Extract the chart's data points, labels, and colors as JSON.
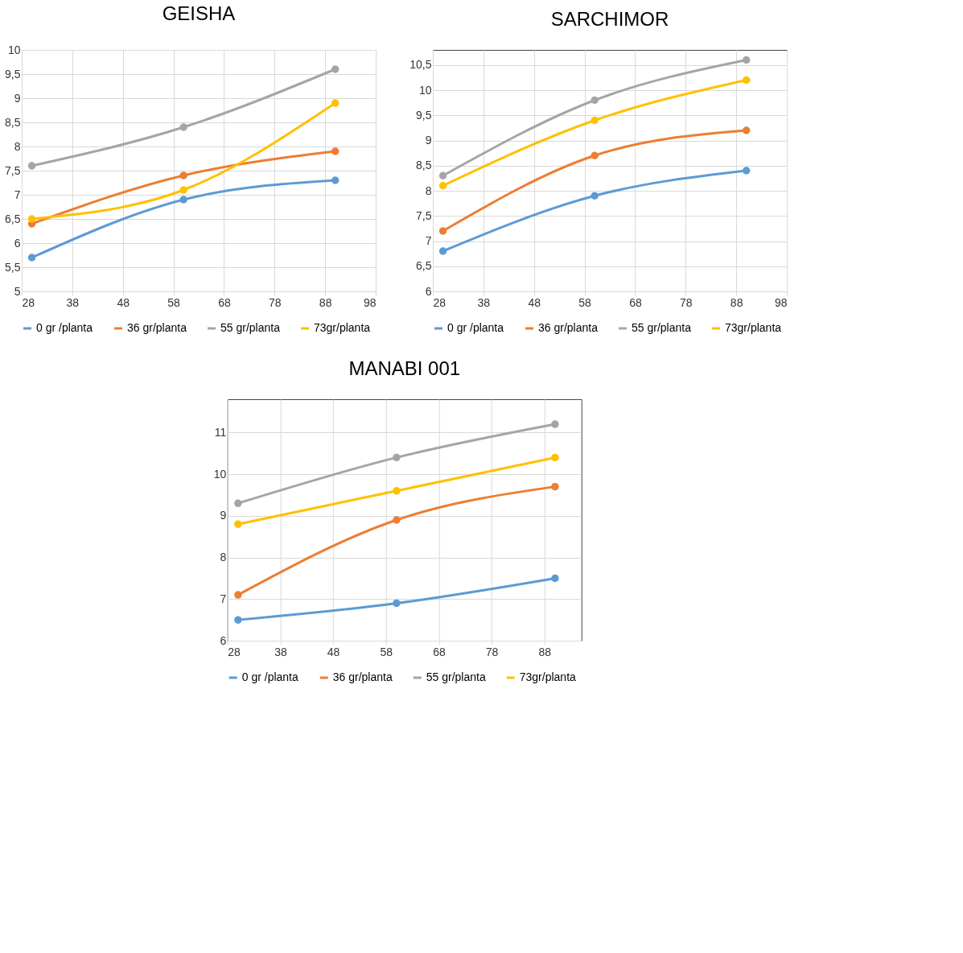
{
  "chart_data": [
    {
      "type": "line",
      "title": "GEISHA",
      "x": [
        30,
        60,
        90
      ],
      "xlim": [
        28,
        98
      ],
      "xticks": [
        28,
        38,
        48,
        58,
        68,
        78,
        88,
        98
      ],
      "ylim": [
        5,
        10
      ],
      "yticks": [
        5,
        {
          "value": 5.5,
          "label": "5,5"
        },
        6,
        {
          "value": 6.5,
          "label": "6,5"
        },
        7,
        {
          "value": 7.5,
          "label": "7,5"
        },
        8,
        {
          "value": 8.5,
          "label": "8,5"
        },
        9,
        {
          "value": 9.5,
          "label": "9,5"
        },
        10
      ],
      "grid": true,
      "legend": "bottom",
      "marker": "circle",
      "series": [
        {
          "name": "0 gr /planta",
          "color": "#5b9bd5",
          "values": [
            5.7,
            6.9,
            7.3
          ]
        },
        {
          "name": "36 gr/planta",
          "color": "#ed7d31",
          "values": [
            6.4,
            7.4,
            7.9
          ]
        },
        {
          "name": "55 gr/planta",
          "color": "#a5a5a5",
          "values": [
            7.6,
            8.4,
            9.6
          ]
        },
        {
          "name": "73gr/planta",
          "color": "#ffc000",
          "values": [
            6.5,
            7.1,
            8.9
          ]
        }
      ]
    },
    {
      "type": "line",
      "title": "SARCHIMOR",
      "x": [
        30,
        60,
        90
      ],
      "xlim": [
        28,
        98
      ],
      "xticks": [
        28,
        38,
        48,
        58,
        68,
        78,
        88,
        98
      ],
      "ylim": [
        6,
        10.8
      ],
      "yticks": [
        6,
        {
          "value": 6.5,
          "label": "6,5"
        },
        7,
        {
          "value": 7.5,
          "label": "7,5"
        },
        8,
        {
          "value": 8.5,
          "label": "8,5"
        },
        9,
        {
          "value": 9.5,
          "label": "9,5"
        },
        10,
        {
          "value": 10.5,
          "label": "10,5"
        }
      ],
      "grid": true,
      "legend": "bottom",
      "marker": "circle",
      "series": [
        {
          "name": "0 gr /planta",
          "color": "#5b9bd5",
          "values": [
            6.8,
            7.9,
            8.4
          ]
        },
        {
          "name": "36 gr/planta",
          "color": "#ed7d31",
          "values": [
            7.2,
            8.7,
            9.2
          ]
        },
        {
          "name": "55 gr/planta",
          "color": "#a5a5a5",
          "values": [
            8.3,
            9.8,
            10.6
          ]
        },
        {
          "name": "73gr/planta",
          "color": "#ffc000",
          "values": [
            8.1,
            9.4,
            10.2
          ]
        }
      ]
    },
    {
      "type": "line",
      "title": "MANABI 001",
      "x": [
        30,
        60,
        90
      ],
      "xlim": [
        28,
        95
      ],
      "xticks": [
        28,
        38,
        48,
        58,
        68,
        78,
        88
      ],
      "ylim": [
        6,
        11.8
      ],
      "yticks": [
        6,
        7,
        8,
        9,
        10,
        11
      ],
      "grid": true,
      "legend": "bottom",
      "marker": "circle",
      "series": [
        {
          "name": "0 gr /planta",
          "color": "#5b9bd5",
          "values": [
            6.5,
            6.9,
            7.5
          ]
        },
        {
          "name": "36 gr/planta",
          "color": "#ed7d31",
          "values": [
            7.1,
            8.9,
            9.7
          ]
        },
        {
          "name": "55 gr/planta",
          "color": "#a5a5a5",
          "values": [
            9.3,
            10.4,
            11.2
          ]
        },
        {
          "name": "73gr/planta",
          "color": "#ffc000",
          "values": [
            8.8,
            9.6,
            10.4
          ]
        }
      ]
    }
  ]
}
